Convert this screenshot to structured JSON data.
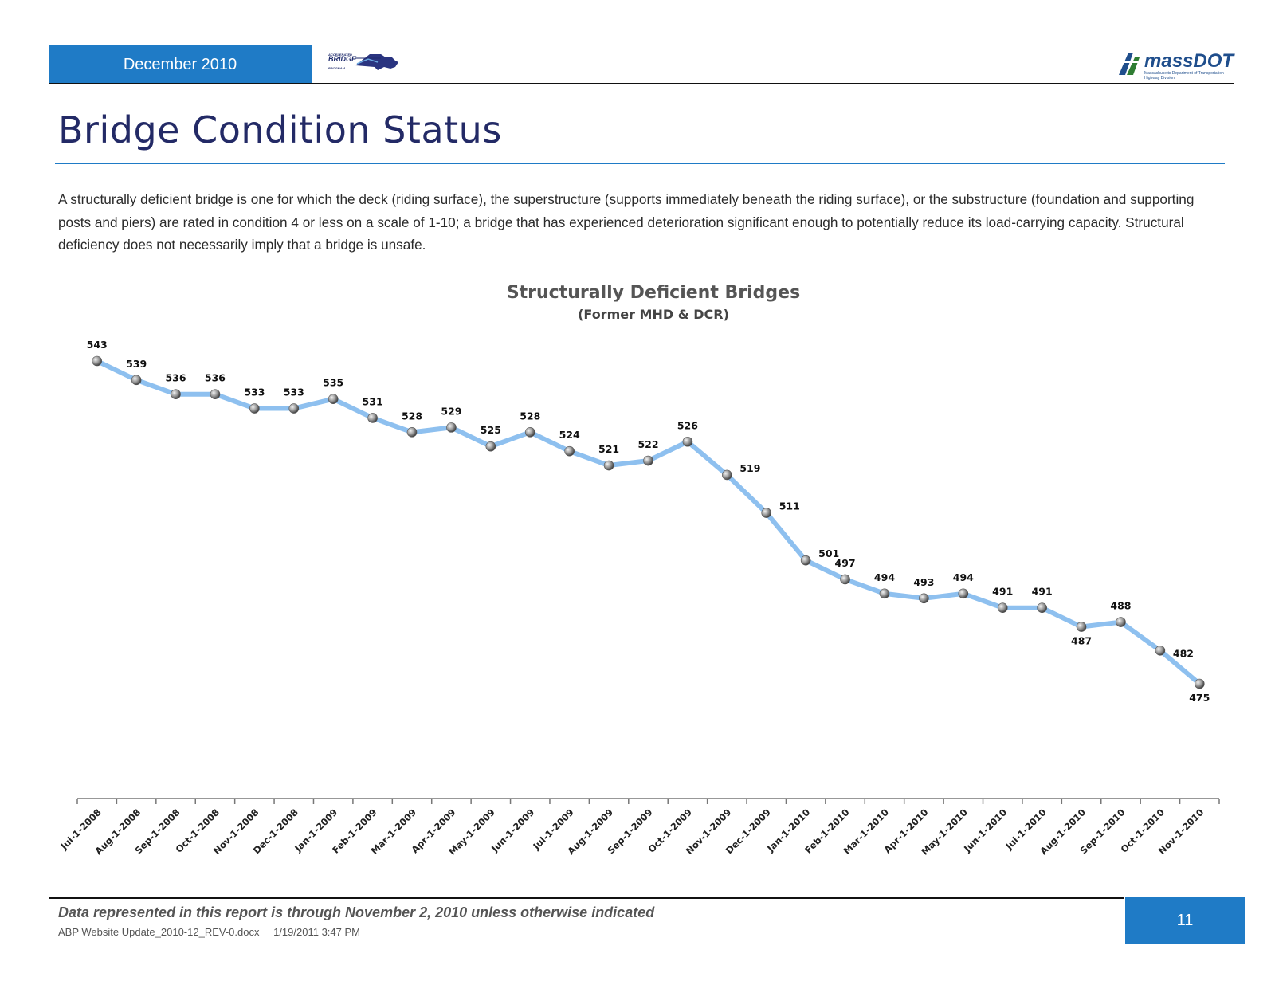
{
  "header": {
    "date_label": "December 2010",
    "program_logo": {
      "line1": "ACCELERATED",
      "line2": "BRIDGE",
      "line3": "PROGRAM",
      "icon": "massachusetts-bridge-logo"
    },
    "agency_logo": {
      "word": "massDOT",
      "sub": "Massachusetts Department of Transportation Highway Division",
      "icon": "massdot-logo"
    }
  },
  "page_title": "Bridge Condition Status",
  "intro_text": "A structurally deficient bridge is one for which the deck (riding surface), the superstructure (supports immediately beneath the riding surface), or the substructure (foundation and supporting posts and piers) are rated in condition 4 or less on a scale of 1-10; a bridge that has experienced deterioration significant enough to potentially reduce its load-carrying capacity.  Structural deficiency does not necessarily imply that a bridge is unsafe.",
  "chart_data": {
    "type": "line",
    "title": "Structurally Deficient Bridges",
    "subtitle": "(Former MHD & DCR)",
    "xlabel": "",
    "ylabel": "",
    "categories": [
      "Jul-1-2008",
      "Aug-1-2008",
      "Sep-1-2008",
      "Oct-1-2008",
      "Nov-1-2008",
      "Dec-1-2008",
      "Jan-1-2009",
      "Feb-1-2009",
      "Mar-1-2009",
      "Apr-1-2009",
      "May-1-2009",
      "Jun-1-2009",
      "Jul-1-2009",
      "Aug-1-2009",
      "Sep-1-2009",
      "Oct-1-2009",
      "Nov-1-2009",
      "Dec-1-2009",
      "Jan-1-2010",
      "Feb-1-2010",
      "Mar-1-2010",
      "Apr-1-2010",
      "May-1-2010",
      "Jun-1-2010",
      "Jul-1-2010",
      "Aug-1-2010",
      "Sep-1-2010",
      "Oct-1-2010",
      "Nov-1-2010"
    ],
    "series": [
      {
        "name": "",
        "values": [
          543,
          539,
          536,
          536,
          533,
          533,
          535,
          531,
          528,
          529,
          525,
          528,
          524,
          521,
          522,
          526,
          519,
          511,
          501,
          497,
          494,
          493,
          494,
          491,
          491,
          487,
          488,
          482,
          475
        ]
      }
    ],
    "grid": false,
    "legend": "none",
    "line_color": "#8ec0ef",
    "marker_color": "#8a8a8a"
  },
  "footer": {
    "note": "Data represented in this report is through November 2, 2010 unless otherwise indicated",
    "file_name": "ABP Website Update_2010-12_REV-0.docx",
    "file_date": "1/19/2011 3:47 PM",
    "page_number": "11"
  }
}
